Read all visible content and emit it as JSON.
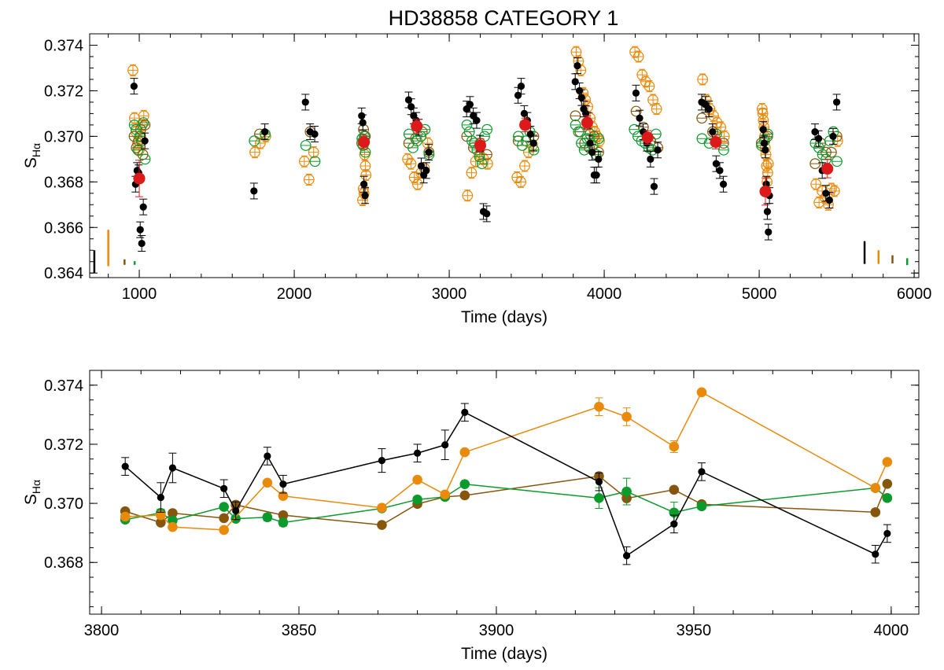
{
  "figure_title": "HD38858 CATEGORY 1",
  "colors": {
    "black": "#000000",
    "orange": "#e98a0b",
    "brown": "#86560d",
    "green": "#0b9a2c",
    "red": "#dd1a1a"
  },
  "chart_data": [
    {
      "type": "scatter",
      "title": "HD38858 CATEGORY 1",
      "xlabel": "Time (days)",
      "ylabel": "S",
      "ylabel_sub": "Hα",
      "xlim": [
        680,
        6030
      ],
      "ylim": [
        0.3638,
        0.3745
      ],
      "xticks": [
        1000,
        2000,
        3000,
        4000,
        5000,
        6000
      ],
      "yticks": [
        0.364,
        0.366,
        0.368,
        0.37,
        0.372,
        0.374
      ],
      "ytick_labels": [
        "0.364",
        "0.366",
        "0.368",
        "0.370",
        "0.372",
        "0.374"
      ],
      "typical_error_bars": [
        {
          "color": "black",
          "x": 710,
          "y": 0.3645,
          "half": 0.0005
        },
        {
          "color": "orange",
          "x": 800,
          "y": 0.3651,
          "half": 0.0008
        },
        {
          "color": "brown",
          "x": 905,
          "y": 0.36448,
          "half": 0.00012
        },
        {
          "color": "green",
          "x": 970,
          "y": 0.36444,
          "half": 8e-05
        },
        {
          "color": "black",
          "x": 5680,
          "y": 0.3649,
          "half": 0.0005
        },
        {
          "color": "orange",
          "x": 5770,
          "y": 0.3647,
          "half": 0.0003
        },
        {
          "color": "brown",
          "x": 5860,
          "y": 0.3646,
          "half": 0.00018
        },
        {
          "color": "green",
          "x": 5955,
          "y": 0.3645,
          "half": 0.00015
        }
      ],
      "seasonal_means": [
        {
          "x": 1000,
          "y": 0.36815,
          "err": 0.0008
        },
        {
          "x": 2450,
          "y": 0.36975,
          "err": 0.0003
        },
        {
          "x": 2790,
          "y": 0.37045,
          "err": 0.0003
        },
        {
          "x": 3200,
          "y": 0.3696,
          "err": 0.0003
        },
        {
          "x": 3490,
          "y": 0.3705,
          "err": 0.0003
        },
        {
          "x": 3890,
          "y": 0.3706,
          "err": 0.0003
        },
        {
          "x": 4280,
          "y": 0.36995,
          "err": 0.0003
        },
        {
          "x": 4720,
          "y": 0.36975,
          "err": 0.0003
        },
        {
          "x": 5040,
          "y": 0.36758,
          "err": 0.0006
        },
        {
          "x": 5440,
          "y": 0.36858,
          "err": 0.0004
        }
      ],
      "seasons": [
        {
          "center": 1000,
          "width": 70,
          "black": [
            0.3722,
            0.3679,
            0.3685,
            0.3684,
            0.3659,
            0.3653,
            0.3669,
            0.3698
          ],
          "orange": [
            0.3729,
            0.3708,
            0.3702,
            0.3697,
            0.3694,
            0.37,
            0.3705,
            0.3709
          ],
          "brown": [
            0.37,
            0.3695,
            0.3698,
            0.3703,
            0.3692,
            0.3705
          ],
          "green": [
            0.3705,
            0.3703,
            0.3694,
            0.37,
            0.3698,
            0.3706,
            0.369
          ]
        },
        {
          "center": 1780,
          "width": 70,
          "black": [
            0.3676,
            0.3702
          ],
          "orange": [
            0.3693,
            0.3697,
            0.37
          ],
          "brown": [
            0.3701
          ],
          "green": [
            0.3698,
            0.3701
          ]
        },
        {
          "center": 2100,
          "width": 60,
          "black": [
            0.3715,
            0.3702,
            0.3701
          ],
          "orange": [
            0.3689,
            0.3681,
            0.3693
          ],
          "brown": [
            0.3702
          ],
          "green": [
            0.3696,
            0.3689
          ]
        },
        {
          "center": 2450,
          "width": 22,
          "black": [
            0.3709,
            0.3706,
            0.3679,
            0.3674
          ],
          "orange": [
            0.3672,
            0.3677,
            0.3675,
            0.3692,
            0.3687,
            0.3683
          ],
          "brown": [
            0.3697,
            0.3703,
            0.37
          ],
          "green": [
            0.3699,
            0.3696,
            0.37,
            0.3693
          ]
        },
        {
          "center": 2800,
          "width": 130,
          "black": [
            0.3716,
            0.3713,
            0.3709,
            0.3707,
            0.3704,
            0.3687,
            0.3683,
            0.3685,
            0.3693
          ],
          "orange": [
            0.369,
            0.3688,
            0.3682,
            0.3679,
            0.3684,
            0.3686,
            0.3697
          ],
          "brown": [
            0.3697,
            0.3699,
            0.3702,
            0.3693
          ],
          "green": [
            0.3701,
            0.3695,
            0.3698,
            0.37,
            0.3703,
            0.3692
          ]
        },
        {
          "center": 3180,
          "width": 130,
          "black": [
            0.3712,
            0.3714,
            0.3709,
            0.3707,
            0.3697,
            0.3667,
            0.3666
          ],
          "orange": [
            0.3674,
            0.3684,
            0.3689,
            0.3692,
            0.369,
            0.3688
          ],
          "brown": [
            0.37,
            0.3695,
            0.3697,
            0.3692
          ],
          "green": [
            0.3705,
            0.3702,
            0.3698,
            0.3697,
            0.3694,
            0.3691,
            0.3688,
            0.37,
            0.3703
          ]
        },
        {
          "center": 3490,
          "width": 100,
          "black": [
            0.3718,
            0.3722,
            0.371,
            0.3707,
            0.3701,
            0.3697
          ],
          "orange": [
            0.3682,
            0.368,
            0.3687,
            0.3693,
            0.3696
          ],
          "brown": [
            0.3698,
            0.37
          ],
          "green": [
            0.37,
            0.3696,
            0.3698,
            0.3702,
            0.3694
          ]
        },
        {
          "center": 3890,
          "width": 150,
          "black": [
            0.3724,
            0.3731,
            0.372,
            0.3717,
            0.3712,
            0.371,
            0.3707,
            0.3697,
            0.3693,
            0.3683,
            0.3683,
            0.369
          ],
          "orange": [
            0.3737,
            0.3733,
            0.3729,
            0.3719,
            0.3716,
            0.3713,
            0.3708,
            0.3704,
            0.3702,
            0.37,
            0.3698
          ],
          "brown": [
            0.3709,
            0.3702,
            0.3697,
            0.3695,
            0.37,
            0.3693
          ],
          "green": [
            0.3705,
            0.3702,
            0.3697,
            0.3694,
            0.3699,
            0.3701,
            0.3696,
            0.3692,
            0.3699
          ]
        },
        {
          "center": 4270,
          "width": 140,
          "black": [
            0.3719,
            0.3708,
            0.3702,
            0.3697,
            0.369,
            0.3678,
            0.3694
          ],
          "orange": [
            0.3737,
            0.3735,
            0.3727,
            0.3724,
            0.3722,
            0.3716,
            0.3712
          ],
          "brown": [
            0.3711,
            0.3704,
            0.3698,
            0.3695
          ],
          "green": [
            0.3703,
            0.37,
            0.3698,
            0.3697,
            0.3695,
            0.3694,
            0.3701
          ]
        },
        {
          "center": 4700,
          "width": 140,
          "black": [
            0.3715,
            0.3714,
            0.3712,
            0.3702,
            0.3688,
            0.3685,
            0.3679
          ],
          "orange": [
            0.3725,
            0.3716,
            0.3712,
            0.3709,
            0.3706,
            0.3704,
            0.37
          ],
          "brown": [
            0.3708,
            0.3702,
            0.3697
          ],
          "green": [
            0.3699,
            0.3697,
            0.3701,
            0.3694
          ]
        },
        {
          "center": 5040,
          "width": 40,
          "black": [
            0.3703,
            0.3697,
            0.3694,
            0.3679,
            0.3667,
            0.3658,
            0.3674
          ],
          "orange": [
            0.3712,
            0.371,
            0.3707,
            0.3704,
            0.37,
            0.3695,
            0.3692,
            0.3687,
            0.368,
            0.3684,
            0.3688
          ],
          "brown": [
            0.3697,
            0.37
          ],
          "green": [
            0.3696,
            0.3698,
            0.3701
          ]
        },
        {
          "center": 5430,
          "width": 140,
          "black": [
            0.3702,
            0.3699,
            0.3685,
            0.3675,
            0.3672,
            0.37,
            0.3715
          ],
          "orange": [
            0.3679,
            0.3671,
            0.3676,
            0.3673,
            0.367,
            0.3677,
            0.3676,
            0.3698
          ],
          "brown": [
            0.3688,
            0.3697,
            0.3693,
            0.3693,
            0.37
          ],
          "green": [
            0.3697,
            0.3695,
            0.3692,
            0.369,
            0.3698,
            0.3702,
            0.3689
          ]
        }
      ]
    },
    {
      "type": "line",
      "title": "",
      "xlabel": "Time (days)",
      "ylabel": "S",
      "ylabel_sub": "Hα",
      "xlim": [
        3797,
        4007
      ],
      "ylim": [
        0.36625,
        0.3745
      ],
      "xticks": [
        3800,
        3850,
        3900,
        3950,
        4000
      ],
      "yticks": [
        0.368,
        0.37,
        0.372,
        0.374
      ],
      "ytick_labels": [
        "0.368",
        "0.370",
        "0.372",
        "0.374"
      ],
      "series": [
        {
          "name": "black",
          "x": [
            3806,
            3815,
            3818,
            3831,
            3834,
            3842,
            3846,
            3871,
            3880,
            3887,
            3892,
            3926,
            3933,
            3945,
            3952,
            3996,
            3999
          ],
          "y": [
            0.37125,
            0.3702,
            0.3712,
            0.3705,
            0.36975,
            0.3716,
            0.37065,
            0.37145,
            0.3717,
            0.37198,
            0.37308,
            0.37073,
            0.36823,
            0.3693,
            0.37107,
            0.36828,
            0.36898
          ],
          "err": [
            0.0003,
            0.0005,
            0.0005,
            0.0003,
            0.0003,
            0.0003,
            0.0003,
            0.0004,
            0.0003,
            0.0005,
            0.0003,
            0.0003,
            0.0003,
            0.0003,
            0.0003,
            0.0003,
            0.0003
          ]
        },
        {
          "name": "orange",
          "x": [
            3806,
            3815,
            3818,
            3831,
            3842,
            3846,
            3871,
            3880,
            3887,
            3892,
            3926,
            3933,
            3945,
            3952,
            3996,
            3999
          ],
          "y": [
            0.36955,
            0.3696,
            0.3692,
            0.3691,
            0.3707,
            0.37025,
            0.36985,
            0.3708,
            0.3703,
            0.37173,
            0.37327,
            0.37293,
            0.37192,
            0.37376,
            0.37052,
            0.3714
          ],
          "err": [
            5e-05,
            5e-05,
            5e-05,
            5e-05,
            5e-05,
            5e-05,
            5e-05,
            5e-05,
            5e-05,
            5e-05,
            0.0003,
            0.0003,
            0.0002,
            8e-05,
            5e-05,
            5e-05
          ]
        },
        {
          "name": "brown",
          "x": [
            3806,
            3815,
            3818,
            3831,
            3834,
            3846,
            3871,
            3880,
            3887,
            3892,
            3926,
            3933,
            3945,
            3952,
            3996,
            3999
          ],
          "y": [
            0.36973,
            0.36935,
            0.36967,
            0.3695,
            0.36995,
            0.3696,
            0.36927,
            0.36998,
            0.37022,
            0.37027,
            0.37092,
            0.37017,
            0.37046,
            0.36997,
            0.3697,
            0.37066
          ],
          "err": [
            5e-05,
            5e-05,
            5e-05,
            5e-05,
            5e-05,
            5e-05,
            5e-05,
            5e-05,
            5e-05,
            5e-05,
            8e-05,
            8e-05,
            5e-05,
            5e-05,
            5e-05,
            5e-05
          ]
        },
        {
          "name": "green",
          "x": [
            3806,
            3815,
            3818,
            3831,
            3834,
            3842,
            3846,
            3871,
            3880,
            3887,
            3892,
            3926,
            3933,
            3945,
            3952,
            3996,
            3999
          ],
          "y": [
            0.36945,
            0.36968,
            0.36942,
            0.36988,
            0.36948,
            0.36953,
            0.36935,
            0.36983,
            0.37013,
            0.37022,
            0.37065,
            0.37018,
            0.3704,
            0.36969,
            0.3699,
            0.37052,
            0.37018
          ],
          "err": [
            8e-05,
            0.00012,
            8e-05,
            8e-05,
            8e-05,
            0.00012,
            0.00012,
            8e-05,
            0.0001,
            0.0001,
            8e-05,
            0.00035,
            0.00045,
            0.00035,
            0.0001,
            0.0001,
            0.0001
          ]
        }
      ]
    }
  ]
}
